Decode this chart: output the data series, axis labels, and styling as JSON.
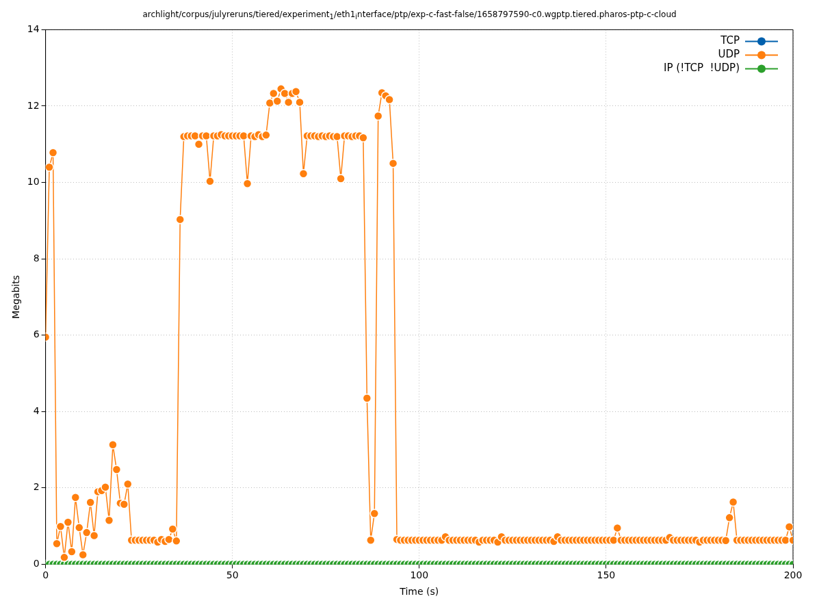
{
  "chart_data": {
    "type": "line",
    "title": "archlight/corpus/julyreruns/tiered/experiment$_{1}$/eth1$_{i}$nterface/ptp/exp-c-fast-false/1658797590-c0.wgptp.tiered.pharos-ptp-c-cloud",
    "xlabel": "Time (s)",
    "ylabel": "Megabits",
    "x": [
      0,
      1,
      2,
      3,
      4,
      5,
      6,
      7,
      8,
      9,
      10,
      11,
      12,
      13,
      14,
      15,
      16,
      17,
      18,
      19,
      20,
      21,
      22,
      23,
      24,
      25,
      26,
      27,
      28,
      29,
      30,
      31,
      32,
      33,
      34,
      35,
      36,
      37,
      38,
      39,
      40,
      41,
      42,
      43,
      44,
      45,
      46,
      47,
      48,
      49,
      50,
      51,
      52,
      53,
      54,
      55,
      56,
      57,
      58,
      59,
      60,
      61,
      62,
      63,
      64,
      65,
      66,
      67,
      68,
      69,
      70,
      71,
      72,
      73,
      74,
      75,
      76,
      77,
      78,
      79,
      80,
      81,
      82,
      83,
      84,
      85,
      86,
      87,
      88,
      89,
      90,
      91,
      92,
      93,
      94,
      95,
      96,
      97,
      98,
      99,
      100,
      101,
      102,
      103,
      104,
      105,
      106,
      107,
      108,
      109,
      110,
      111,
      112,
      113,
      114,
      115,
      116,
      117,
      118,
      119,
      120,
      121,
      122,
      123,
      124,
      125,
      126,
      127,
      128,
      129,
      130,
      131,
      132,
      133,
      134,
      135,
      136,
      137,
      138,
      139,
      140,
      141,
      142,
      143,
      144,
      145,
      146,
      147,
      148,
      149,
      150,
      151,
      152,
      153,
      154,
      155,
      156,
      157,
      158,
      159,
      160,
      161,
      162,
      163,
      164,
      165,
      166,
      167,
      168,
      169,
      170,
      171,
      172,
      173,
      174,
      175,
      176,
      177,
      178,
      179,
      180,
      181,
      182,
      183,
      184,
      185,
      186,
      187,
      188,
      189,
      190,
      191,
      192,
      193,
      194,
      195,
      196,
      197,
      198,
      199,
      200
    ],
    "series": [
      {
        "name": "TCP",
        "color": "#0060ad",
        "values": [
          null,
          null,
          null,
          null,
          null,
          null,
          null,
          null,
          null,
          null,
          null,
          null,
          null,
          null,
          null,
          null,
          null,
          null,
          null,
          null,
          null,
          null,
          null,
          null,
          null,
          null,
          null,
          null,
          null,
          null,
          null,
          null,
          null,
          null,
          null,
          null,
          null,
          null,
          null,
          null,
          null,
          null,
          null,
          null,
          null,
          null,
          null,
          null,
          null,
          null,
          null,
          null,
          null,
          null,
          null,
          null,
          null,
          null,
          null,
          null,
          null,
          null,
          null,
          null,
          null,
          null,
          null,
          null,
          null,
          null,
          null,
          null,
          null,
          null,
          null,
          null,
          null,
          null,
          null,
          null,
          null,
          null,
          null,
          null,
          null,
          null,
          null,
          null,
          null,
          null,
          null,
          null,
          null,
          null,
          null,
          null,
          null,
          null,
          null,
          null,
          null,
          null,
          null,
          null,
          null,
          null,
          null,
          null,
          null,
          null,
          null,
          null,
          null,
          null,
          null,
          null,
          null,
          null,
          null,
          null,
          null,
          null,
          null,
          null,
          null,
          null,
          null,
          null,
          null,
          null,
          null,
          null,
          null,
          null,
          null,
          null,
          null,
          null,
          null,
          null,
          null,
          null,
          null,
          null,
          null,
          null,
          null,
          null,
          null,
          null,
          null,
          null,
          null,
          null,
          null,
          null,
          null,
          null,
          null,
          null,
          null,
          null,
          null,
          null,
          null,
          null,
          null,
          null,
          null,
          null,
          null,
          null,
          null,
          null,
          null,
          null,
          null,
          null,
          null,
          null,
          null,
          null,
          null,
          null,
          null,
          null,
          null,
          null,
          null,
          null,
          null,
          null,
          null,
          null,
          null,
          null,
          null,
          null,
          null,
          null,
          null
        ]
      },
      {
        "name": "UDP",
        "color": "#ff7f0e",
        "values": [
          5.95,
          10.4,
          10.78,
          0.54,
          0.99,
          0.18,
          1.1,
          0.33,
          1.75,
          0.96,
          0.25,
          0.83,
          1.62,
          0.75,
          1.9,
          1.93,
          2.02,
          1.15,
          3.13,
          2.48,
          1.6,
          1.57,
          2.1,
          0.63,
          0.63,
          0.63,
          0.63,
          0.63,
          0.63,
          0.63,
          0.58,
          0.65,
          0.6,
          0.65,
          0.92,
          0.61,
          9.03,
          11.2,
          11.22,
          11.22,
          11.22,
          11.0,
          11.22,
          11.22,
          10.03,
          11.22,
          11.22,
          11.25,
          11.22,
          11.22,
          11.22,
          11.22,
          11.22,
          11.22,
          9.97,
          11.22,
          11.2,
          11.25,
          11.2,
          11.24,
          12.08,
          12.33,
          12.13,
          12.45,
          12.33,
          12.1,
          12.33,
          12.38,
          12.1,
          10.23,
          11.22,
          11.22,
          11.22,
          11.2,
          11.22,
          11.2,
          11.22,
          11.2,
          11.2,
          10.1,
          11.22,
          11.22,
          11.2,
          11.22,
          11.22,
          11.17,
          4.35,
          0.63,
          1.33,
          11.74,
          12.35,
          12.27,
          12.17,
          10.5,
          0.65,
          0.63,
          0.63,
          0.63,
          0.63,
          0.63,
          0.63,
          0.63,
          0.63,
          0.63,
          0.63,
          0.63,
          0.63,
          0.72,
          0.63,
          0.63,
          0.63,
          0.63,
          0.63,
          0.63,
          0.63,
          0.63,
          0.58,
          0.63,
          0.63,
          0.63,
          0.63,
          0.58,
          0.72,
          0.63,
          0.63,
          0.63,
          0.63,
          0.63,
          0.63,
          0.63,
          0.63,
          0.63,
          0.63,
          0.63,
          0.63,
          0.63,
          0.6,
          0.72,
          0.63,
          0.63,
          0.63,
          0.63,
          0.63,
          0.63,
          0.63,
          0.63,
          0.63,
          0.63,
          0.63,
          0.63,
          0.63,
          0.63,
          0.63,
          0.95,
          0.63,
          0.63,
          0.63,
          0.63,
          0.63,
          0.63,
          0.63,
          0.63,
          0.63,
          0.63,
          0.63,
          0.63,
          0.63,
          0.7,
          0.63,
          0.63,
          0.63,
          0.63,
          0.63,
          0.63,
          0.63,
          0.58,
          0.63,
          0.63,
          0.63,
          0.63,
          0.63,
          0.63,
          0.62,
          1.22,
          1.63,
          0.63,
          0.63,
          0.63,
          0.63,
          0.63,
          0.63,
          0.63,
          0.63,
          0.63,
          0.63,
          0.63,
          0.63,
          0.63,
          0.63,
          0.98,
          0.63
        ]
      },
      {
        "name": "IP (!TCP  !UDP)",
        "color": "#2ca02c",
        "values": [
          0,
          0,
          0,
          0,
          0,
          0,
          0,
          0,
          0,
          0,
          0,
          0,
          0,
          0,
          0,
          0,
          0,
          0,
          0,
          0,
          0,
          0,
          0,
          0,
          0,
          0,
          0,
          0,
          0,
          0,
          0,
          0,
          0,
          0,
          0,
          0,
          0,
          0,
          0,
          0,
          0,
          0,
          0,
          0,
          0,
          0,
          0,
          0,
          0,
          0,
          0,
          0,
          0,
          0,
          0,
          0,
          0,
          0,
          0,
          0,
          0,
          0,
          0,
          0,
          0,
          0,
          0,
          0,
          0,
          0,
          0,
          0,
          0,
          0,
          0,
          0,
          0,
          0,
          0,
          0,
          0,
          0,
          0,
          0,
          0,
          0,
          0,
          0,
          0,
          0,
          0,
          0,
          0,
          0,
          0,
          0,
          0,
          0,
          0,
          0,
          0,
          0,
          0,
          0,
          0,
          0,
          0,
          0,
          0,
          0,
          0,
          0,
          0,
          0,
          0,
          0,
          0,
          0,
          0,
          0,
          0,
          0,
          0,
          0,
          0,
          0,
          0,
          0,
          0,
          0,
          0,
          0,
          0,
          0,
          0,
          0,
          0,
          0,
          0,
          0,
          0,
          0,
          0,
          0,
          0,
          0,
          0,
          0,
          0,
          0,
          0,
          0,
          0,
          0,
          0,
          0,
          0,
          0,
          0,
          0,
          0,
          0,
          0,
          0,
          0,
          0,
          0,
          0,
          0,
          0,
          0,
          0,
          0,
          0,
          0,
          0,
          0,
          0,
          0,
          0,
          0,
          0,
          0,
          0,
          0,
          0,
          0,
          0,
          0,
          0,
          0,
          0,
          0,
          0,
          0,
          0,
          0,
          0,
          0,
          0,
          0
        ]
      }
    ],
    "xlim": [
      0,
      200
    ],
    "xticks": [
      0,
      50,
      100,
      150,
      200
    ],
    "ylim": [
      0,
      14
    ],
    "yticks": [
      0,
      2,
      4,
      6,
      8,
      10,
      12,
      14
    ],
    "grid": true,
    "legend": "top right",
    "marker": "circle",
    "line_style": "solid"
  }
}
